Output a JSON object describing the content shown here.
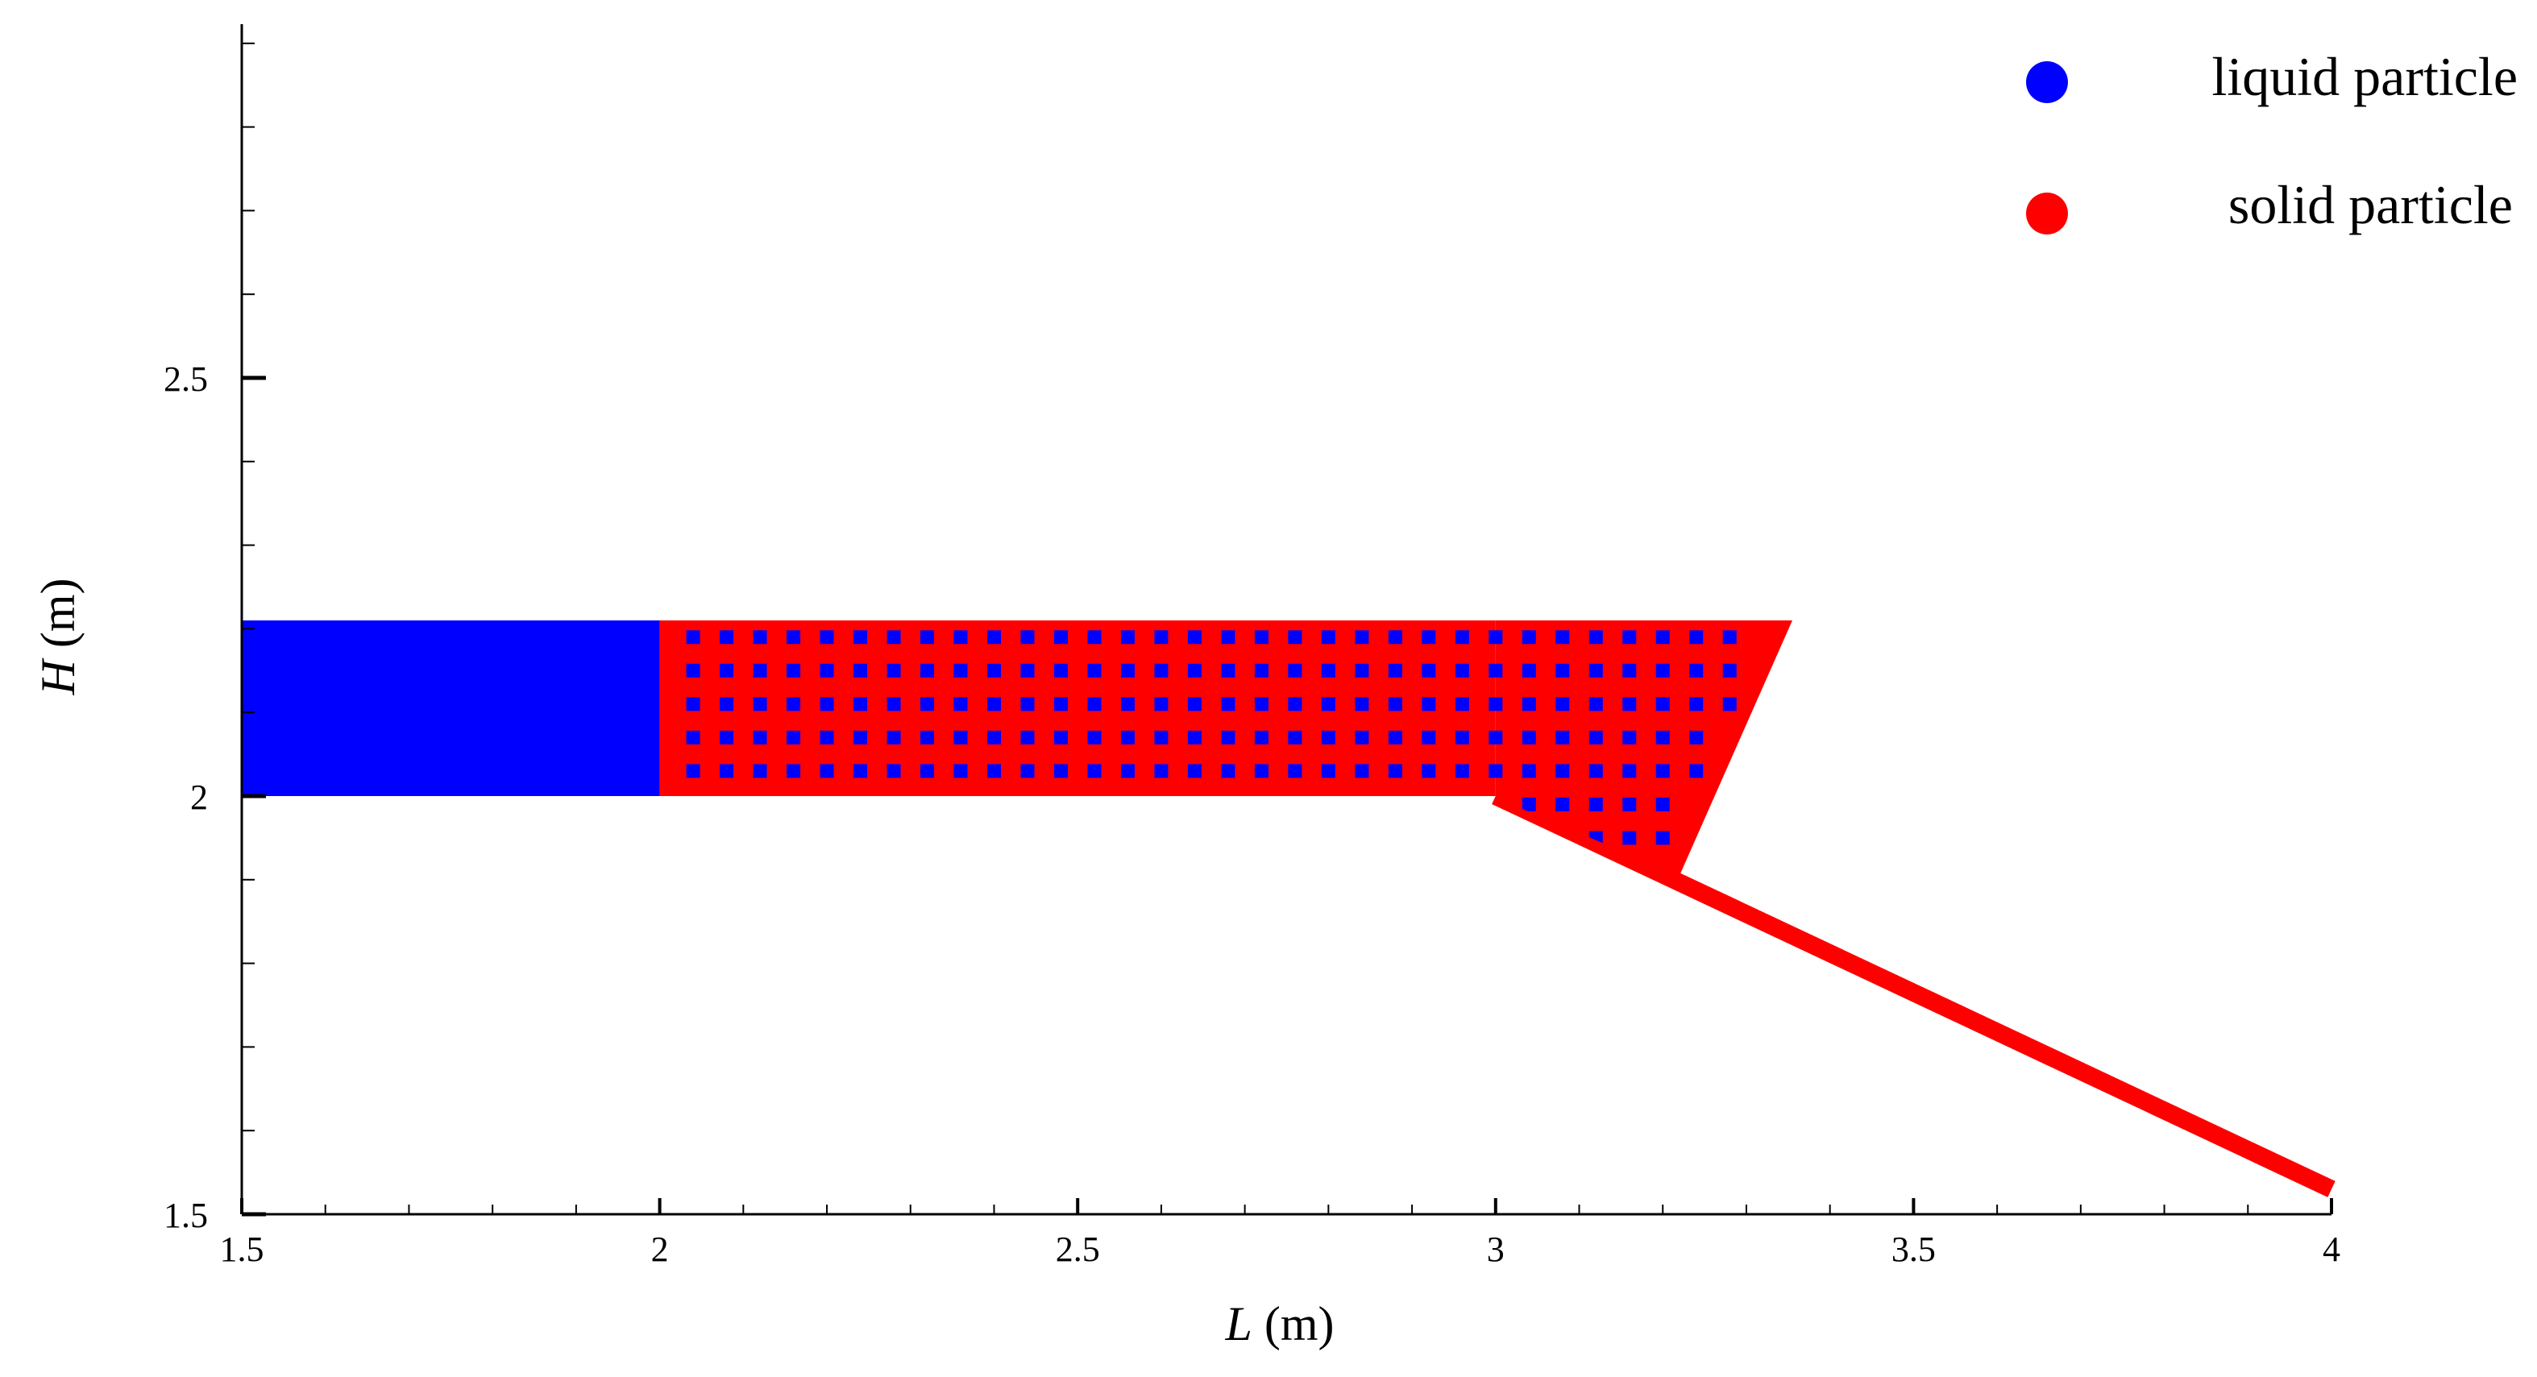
{
  "colors": {
    "liquid": "#0000ff",
    "solid": "#ff0000",
    "axis": "#000000"
  },
  "chart_data": {
    "type": "scatter",
    "title": "",
    "xlabel": {
      "var": "L",
      "unit": " (m)"
    },
    "ylabel": {
      "var": "H",
      "unit": " (m)"
    },
    "xlim": [
      1.5,
      4.0
    ],
    "ylim": [
      1.5,
      2.95
    ],
    "xticks": [
      "1.5",
      "2",
      "2.5",
      "3",
      "3.5",
      "4"
    ],
    "yticks": [
      "1.5",
      "2",
      "2.5"
    ],
    "grid": false,
    "legend_position": "top-right",
    "legend": [
      {
        "label": "liquid particle",
        "color": "#0000ff"
      },
      {
        "label": "solid particle",
        "color": "#ff0000"
      }
    ],
    "series": [
      {
        "name": "liquid particle",
        "regions": [
          {
            "shape": "rectangle",
            "x": [
              1.5,
              2.0
            ],
            "y": [
              2.0,
              2.21
            ]
          }
        ],
        "lattice_region": {
          "x": [
            2.02,
            3.29
          ],
          "y": [
            2.01,
            2.2
          ],
          "dx": 0.04,
          "dy": 0.04
        }
      },
      {
        "name": "solid particle",
        "regions": [
          {
            "shape": "rectangle",
            "x": [
              2.0,
              3.0
            ],
            "y": [
              2.0,
              2.21
            ]
          },
          {
            "shape": "polygon",
            "points": [
              [
                3.0,
                2.21
              ],
              [
                3.355,
                2.21
              ],
              [
                3.22,
                1.905
              ],
              [
                3.0,
                1.998
              ]
            ]
          },
          {
            "shape": "slope",
            "points": [
              [
                3.0,
                2.0
              ],
              [
                4.0,
                1.53
              ]
            ]
          }
        ]
      }
    ]
  }
}
